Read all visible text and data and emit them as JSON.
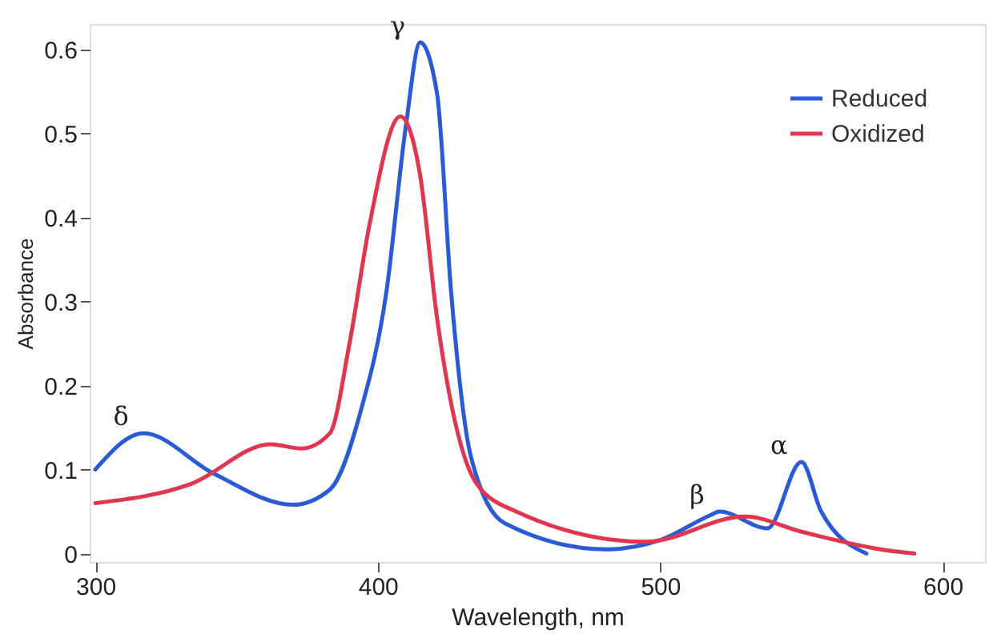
{
  "chart_data": {
    "type": "line",
    "xlabel": "Wavelength, nm",
    "ylabel": "Absorbance",
    "xlim": [
      298,
      615
    ],
    "xticks": [
      300,
      400,
      500,
      600
    ],
    "ylim": [
      -0.01,
      0.63
    ],
    "yticks": [
      0,
      0.1,
      0.2,
      0.3,
      0.4,
      0.5,
      0.6
    ],
    "grid": false,
    "legend": "top right",
    "marker": "none",
    "line_style": "solid",
    "series": [
      {
        "name": "Reduced",
        "color": "#2a5bd7",
        "x": [
          300,
          317,
          342,
          370,
          383,
          394,
          403,
          410,
          415,
          421,
          426,
          433,
          445,
          481,
          500,
          518,
          521,
          538,
          550,
          557,
          573
        ],
        "values": [
          0.1,
          0.143,
          0.095,
          0.058,
          0.076,
          0.17,
          0.31,
          0.51,
          0.608,
          0.547,
          0.31,
          0.115,
          0.036,
          0.005,
          0.016,
          0.046,
          0.05,
          0.03,
          0.109,
          0.05,
          0
        ]
      },
      {
        "name": "Oxidized",
        "color": "#e0364f",
        "x": [
          300,
          334,
          362,
          373,
          383,
          390,
          397,
          408,
          415,
          421,
          435,
          449,
          495,
          530,
          550,
          578,
          590
        ],
        "values": [
          0.06,
          0.083,
          0.13,
          0.125,
          0.143,
          0.25,
          0.39,
          0.52,
          0.45,
          0.28,
          0.083,
          0.05,
          0.014,
          0.044,
          0.026,
          0.005,
          0
        ]
      }
    ],
    "annotations": [
      {
        "text": "δ",
        "x": 317,
        "y": 0.143
      },
      {
        "text": "γ",
        "x": 415,
        "y": 0.608
      },
      {
        "text": "β",
        "x": 521,
        "y": 0.05
      },
      {
        "text": "α",
        "x": 550,
        "y": 0.109
      }
    ]
  }
}
